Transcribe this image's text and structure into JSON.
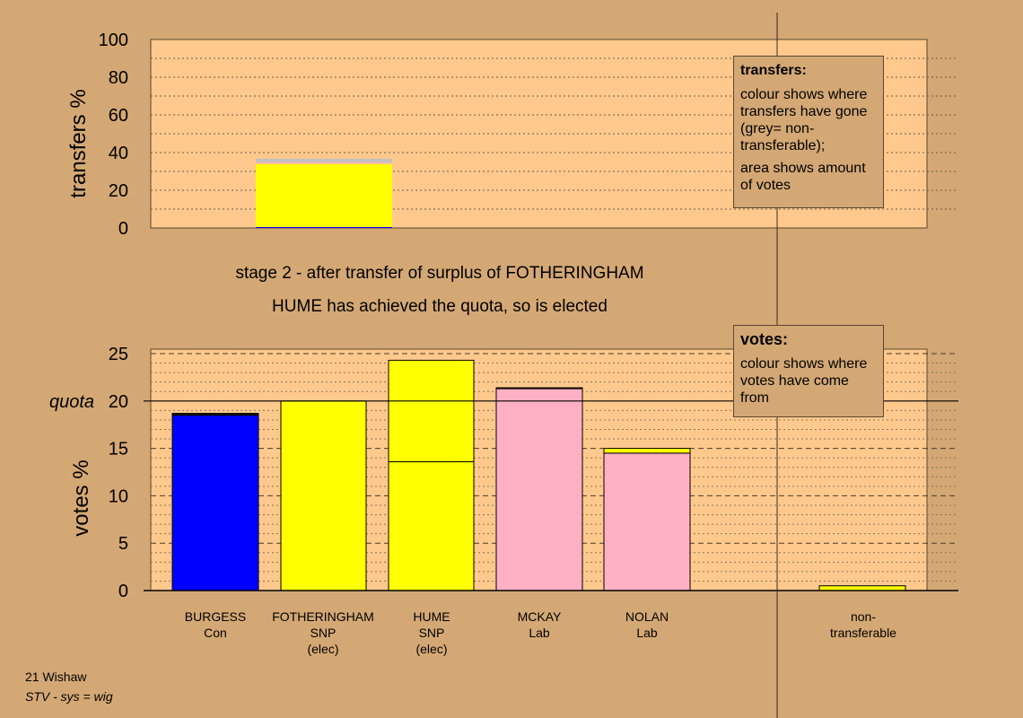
{
  "headline": {
    "stage": "stage 2 - after transfer of surplus of FOTHERINGHAM",
    "status": "HUME has achieved the quota, so is elected"
  },
  "legend_transfers": {
    "title": "transfers:",
    "line1": "colour shows where transfers have gone (grey= non-transferable);",
    "line2": "area shows amount of votes"
  },
  "legend_votes": {
    "title": "votes:",
    "line1": "colour shows where votes have come from"
  },
  "footer": {
    "line1": "21 Wishaw",
    "line2": "STV - sys = wig"
  },
  "colors": {
    "background": "#d4a874",
    "plot_bg": "#ffc98d",
    "Con": "#0000ff",
    "SNP": "#ffff00",
    "Lab": "#ffb0c4",
    "non_transferable": "#c0c0c0"
  },
  "chart_data": [
    {
      "type": "bar",
      "name": "transfers",
      "ylabel": "transfers %",
      "ylim": [
        0,
        100
      ],
      "yticks": [
        0,
        20,
        40,
        60,
        80,
        100
      ],
      "bars": [
        {
          "candidate": "HUME",
          "segments": [
            {
              "party": "Con",
              "value": 0.5
            },
            {
              "party": "SNP",
              "value": 33.5
            },
            {
              "party": "Lab",
              "value": 0.8
            },
            {
              "party": "non_transferable",
              "value": 1.9
            }
          ]
        }
      ]
    },
    {
      "type": "bar",
      "name": "votes",
      "ylabel": "votes %",
      "ylim": [
        0,
        25
      ],
      "yticks": [
        0,
        5,
        10,
        15,
        20,
        25
      ],
      "quota": 20,
      "quota_label": "quota",
      "bars": [
        {
          "name": "BURGESS",
          "party": "Con",
          "note": "",
          "segments": [
            {
              "party": "Con",
              "value": 18.5
            },
            {
              "party": "SNP",
              "value": 0.1
            },
            {
              "party": "Lab",
              "value": 0.1
            }
          ]
        },
        {
          "name": "FOTHERINGHAM",
          "party": "SNP",
          "note": "(elec)",
          "segments": [
            {
              "party": "SNP",
              "value": 20.0
            }
          ]
        },
        {
          "name": "HUME",
          "party": "SNP",
          "note": "(elec)",
          "segments": [
            {
              "party": "SNP",
              "value": 13.6
            },
            {
              "party": "SNP",
              "value": 10.7
            }
          ]
        },
        {
          "name": "MCKAY",
          "party": "Lab",
          "note": "",
          "segments": [
            {
              "party": "Lab",
              "value": 21.3
            },
            {
              "party": "SNP",
              "value": 0.1
            }
          ]
        },
        {
          "name": "NOLAN",
          "party": "Lab",
          "note": "",
          "segments": [
            {
              "party": "Lab",
              "value": 14.5
            },
            {
              "party": "SNP",
              "value": 0.5
            }
          ]
        },
        {
          "name": "non-transferable",
          "party": "",
          "note": "",
          "segments": [
            {
              "party": "SNP",
              "value": 0.5
            }
          ]
        }
      ]
    }
  ]
}
